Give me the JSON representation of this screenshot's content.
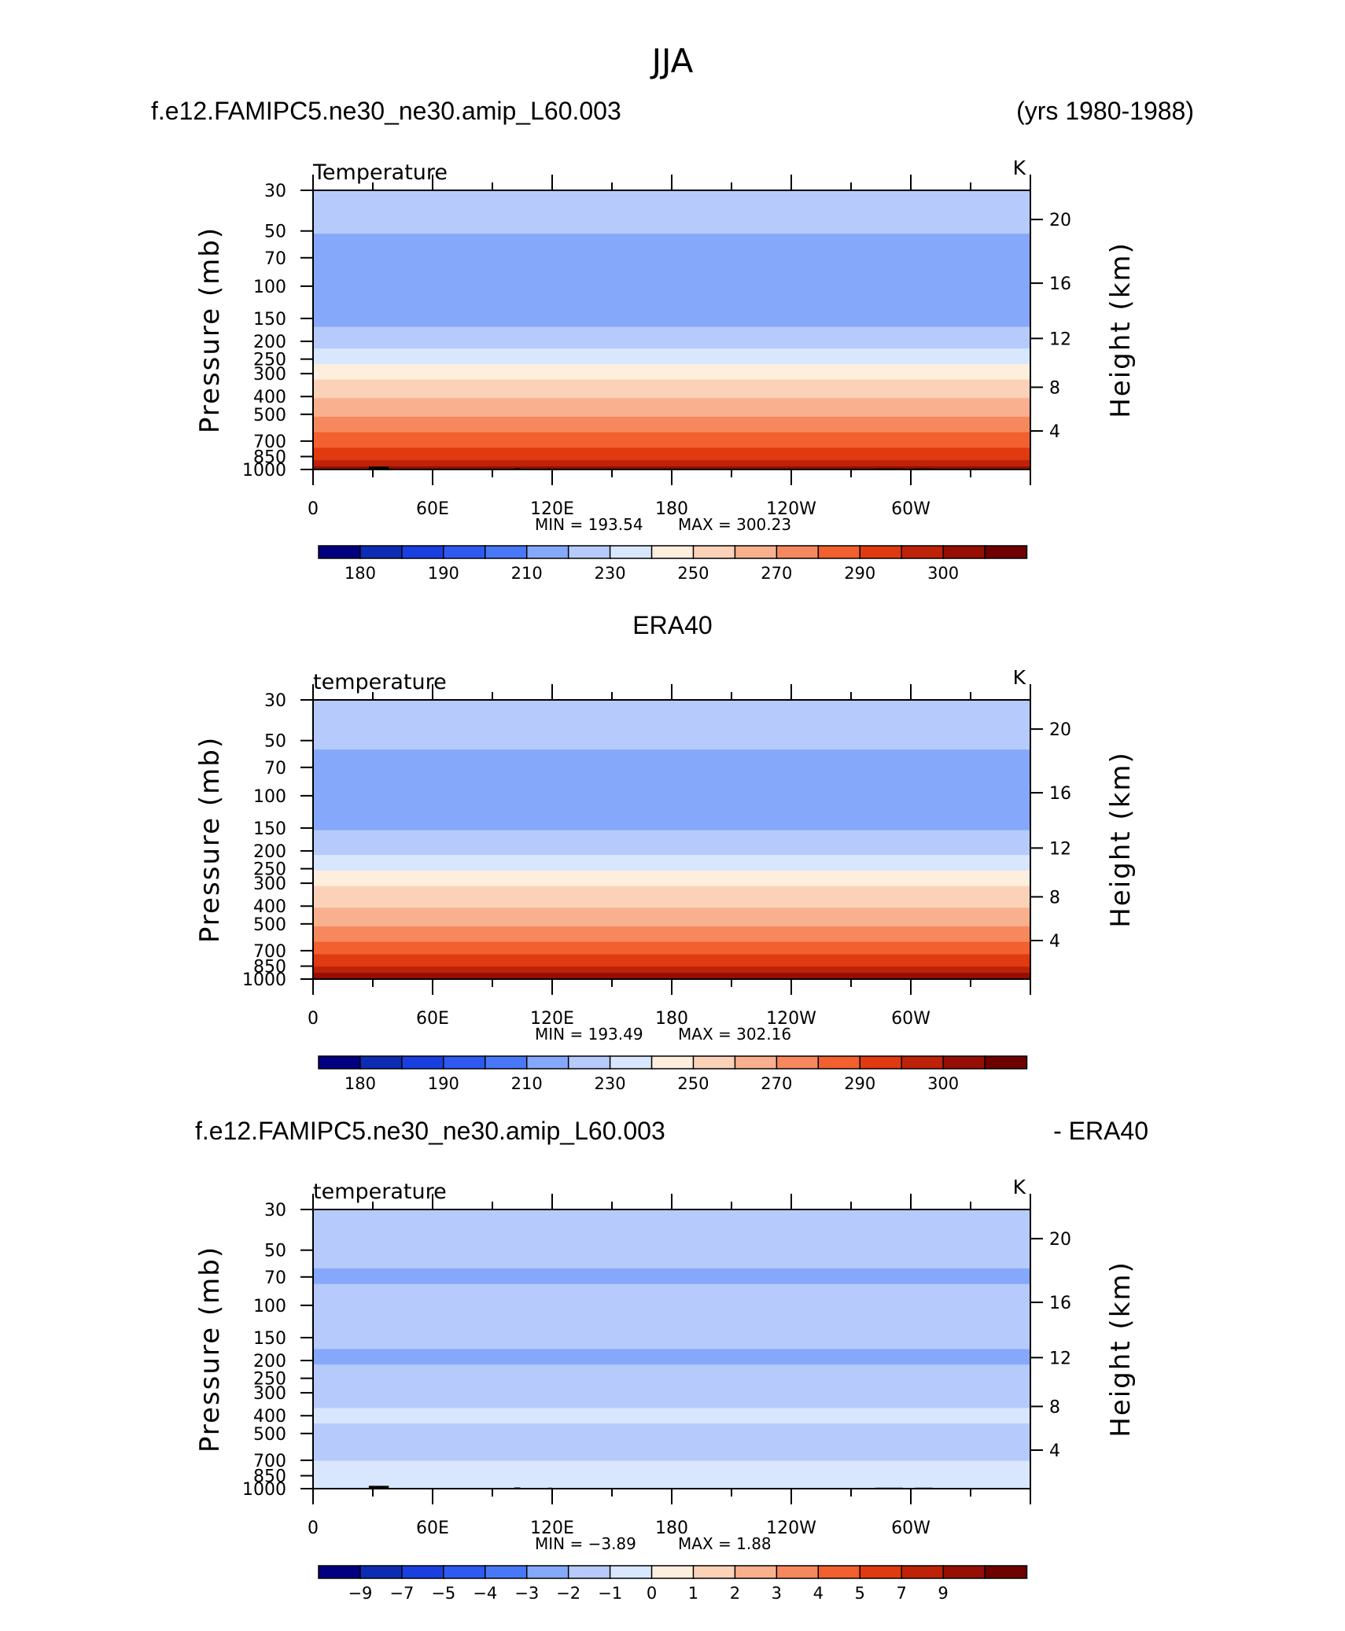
{
  "figure_title": "JJA",
  "colors": {
    "absolute_scale": [
      "#000080",
      "#0c2cb4",
      "#1a3fe0",
      "#2e5af2",
      "#4878f8",
      "#86a8fb",
      "#b6cbfb",
      "#d8e6fe",
      "#fdeedd",
      "#fbd2b8",
      "#f8b08e",
      "#f6885e",
      "#f1602e",
      "#e03a10",
      "#be2208",
      "#960e04",
      "#6e0000"
    ],
    "anomaly_scale": [
      "#000080",
      "#0c2cb4",
      "#1a3fe0",
      "#2e5af2",
      "#4878f8",
      "#86a8fb",
      "#b6cbfb",
      "#d8e6fe",
      "#fdeedd",
      "#fbd2b8",
      "#f8b08e",
      "#f6885e",
      "#f1602e",
      "#e03a10",
      "#be2208",
      "#960e04",
      "#6e0000"
    ],
    "topography": "#000000"
  },
  "chart_data": [
    {
      "type": "heatmap",
      "panel": "model",
      "header_left": "f.e12.FAMIPC5.ne30_ne30.amip_L60.003",
      "header_right": "(yrs 1980-1988)",
      "title": "Temperature",
      "units": "K",
      "ylabel": "Pressure (mb)",
      "ylabel_right": "Height (km)",
      "x_ticks": [
        "0",
        "60E",
        "120E",
        "180",
        "120W",
        "60W"
      ],
      "x_tick_values": [
        0,
        60,
        120,
        180,
        240,
        300
      ],
      "xlim": [
        0,
        360
      ],
      "y_ticks": [
        "30",
        "50",
        "70",
        "100",
        "150",
        "200",
        "250",
        "300",
        "400",
        "500",
        "700",
        "850",
        "1000"
      ],
      "y_tick_values": [
        30,
        50,
        70,
        100,
        150,
        200,
        250,
        300,
        400,
        500,
        700,
        850,
        1000
      ],
      "ylim": [
        1000,
        30
      ],
      "y_scale": "log",
      "y_right_ticks": [
        "4",
        "8",
        "12",
        "16",
        "20"
      ],
      "y_right_tick_values": [
        4,
        8,
        12,
        16,
        20
      ],
      "min_label": "MIN = 193.54",
      "max_label": "MAX = 300.23",
      "colorbar_labels": [
        "180",
        "190",
        "210",
        "230",
        "250",
        "270",
        "290",
        "300"
      ],
      "colorbar_levels": [
        175,
        180,
        185,
        190,
        200,
        210,
        220,
        230,
        240,
        250,
        260,
        270,
        280,
        290,
        295,
        300
      ],
      "profile_levels": [
        30,
        50,
        70,
        100,
        150,
        200,
        250,
        300,
        400,
        500,
        700,
        850,
        1000
      ],
      "profile_values": [
        219,
        211,
        203,
        200,
        206,
        216,
        227,
        236,
        249,
        259,
        276,
        288,
        298
      ],
      "topography": true
    },
    {
      "type": "heatmap",
      "panel": "obs",
      "header_center": "ERA40",
      "title": "temperature",
      "units": "K",
      "ylabel": "Pressure (mb)",
      "ylabel_right": "Height (km)",
      "x_ticks": [
        "0",
        "60E",
        "120E",
        "180",
        "120W",
        "60W"
      ],
      "x_tick_values": [
        0,
        60,
        120,
        180,
        240,
        300
      ],
      "xlim": [
        0,
        360
      ],
      "y_ticks": [
        "30",
        "50",
        "70",
        "100",
        "150",
        "200",
        "250",
        "300",
        "400",
        "500",
        "700",
        "850",
        "1000"
      ],
      "y_tick_values": [
        30,
        50,
        70,
        100,
        150,
        200,
        250,
        300,
        400,
        500,
        700,
        850,
        1000
      ],
      "ylim": [
        1000,
        30
      ],
      "y_scale": "log",
      "y_right_ticks": [
        "4",
        "8",
        "12",
        "16",
        "20"
      ],
      "y_right_tick_values": [
        4,
        8,
        12,
        16,
        20
      ],
      "min_label": "MIN = 193.49",
      "max_label": "MAX = 302.16",
      "colorbar_labels": [
        "180",
        "190",
        "210",
        "230",
        "250",
        "270",
        "290",
        "300"
      ],
      "colorbar_levels": [
        175,
        180,
        185,
        190,
        200,
        210,
        220,
        230,
        240,
        250,
        260,
        270,
        280,
        290,
        295,
        300
      ],
      "profile_levels": [
        30,
        50,
        70,
        100,
        150,
        200,
        250,
        300,
        400,
        500,
        700,
        850,
        1000
      ],
      "profile_values": [
        220,
        212,
        206,
        203,
        209,
        217,
        228,
        238,
        249,
        259,
        276,
        289,
        299
      ],
      "topography": false
    },
    {
      "type": "heatmap",
      "panel": "difference",
      "header_left": "f.e12.FAMIPC5.ne30_ne30.amip_L60.003",
      "header_right": "- ERA40",
      "title": "temperature",
      "units": "K",
      "ylabel": "Pressure (mb)",
      "ylabel_right": "Height (km)",
      "x_ticks": [
        "0",
        "60E",
        "120E",
        "180",
        "120W",
        "60W"
      ],
      "x_tick_values": [
        0,
        60,
        120,
        180,
        240,
        300
      ],
      "xlim": [
        0,
        360
      ],
      "y_ticks": [
        "30",
        "50",
        "70",
        "100",
        "150",
        "200",
        "250",
        "300",
        "400",
        "500",
        "700",
        "850",
        "1000"
      ],
      "y_tick_values": [
        30,
        50,
        70,
        100,
        150,
        200,
        250,
        300,
        400,
        500,
        700,
        850,
        1000
      ],
      "ylim": [
        1000,
        30
      ],
      "y_scale": "log",
      "y_right_ticks": [
        "4",
        "8",
        "12",
        "16",
        "20"
      ],
      "y_right_tick_values": [
        4,
        8,
        12,
        16,
        20
      ],
      "min_label": "MIN = −3.89",
      "max_label": "MAX = 1.88",
      "colorbar_labels": [
        "−9",
        "−7",
        "−5",
        "−4",
        "−3",
        "−2",
        "−1",
        "0",
        "1",
        "2",
        "3",
        "4",
        "5",
        "7",
        "9"
      ],
      "colorbar_levels": [
        -9,
        -7,
        -5,
        -4,
        -3,
        -2,
        -1,
        0,
        1,
        2,
        3,
        4,
        5,
        7,
        9
      ],
      "profile_levels": [
        30,
        50,
        70,
        100,
        150,
        200,
        250,
        300,
        400,
        500,
        700,
        850,
        1000
      ],
      "profile_values": [
        -1.5,
        -1.5,
        -2.3,
        -1.2,
        -1.8,
        -2.2,
        -1.5,
        -1.3,
        -0.8,
        -1.2,
        -1.0,
        -0.7,
        -0.4
      ],
      "topography": true
    }
  ]
}
